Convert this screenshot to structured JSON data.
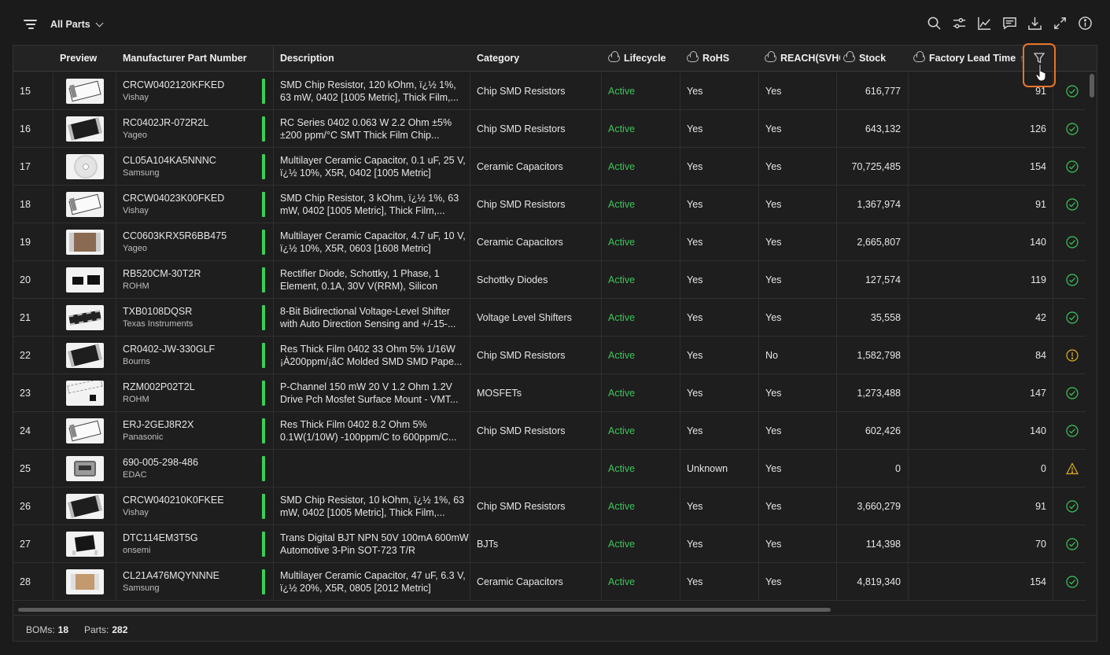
{
  "toolbar": {
    "view_label": "All Parts",
    "icons": [
      "search-icon",
      "sliders-icon",
      "chart-icon",
      "comment-icon",
      "download-icon",
      "expand-icon",
      "info-icon"
    ]
  },
  "columns": {
    "preview": "Preview",
    "mpn": "Manufacturer Part Number",
    "description": "Description",
    "category": "Category",
    "lifecycle": "Lifecycle",
    "rohs": "RoHS",
    "reach": "REACH(SVHC",
    "stock": "Stock",
    "lead_time": "Factory Lead Time",
    "sort_indicator": "↑"
  },
  "rows": [
    {
      "index": "15",
      "mpn": "CRCW0402120KFKED",
      "manufacturer": "Vishay",
      "description": "SMD Chip Resistor, 120 kOhm, ï¿½ 1%, 63 mW, 0402 [1005 Metric], Thick Film,...",
      "category": "Chip SMD Resistors",
      "lifecycle": "Active",
      "rohs": "Yes",
      "reach": "Yes",
      "stock": "616,777",
      "lead_time": "91",
      "status": "ok",
      "thumb": "resistor-white"
    },
    {
      "index": "16",
      "mpn": "RC0402JR-072R2L",
      "manufacturer": "Yageo",
      "description": "RC Series 0402 0.063 W 2.2 Ohm ±5% ±200 ppm/°C SMT Thick Film Chip...",
      "category": "Chip SMD Resistors",
      "lifecycle": "Active",
      "rohs": "Yes",
      "reach": "Yes",
      "stock": "643,132",
      "lead_time": "126",
      "status": "ok",
      "thumb": "resistor-black"
    },
    {
      "index": "17",
      "mpn": "CL05A104KA5NNNC",
      "manufacturer": "Samsung",
      "description": "Multilayer Ceramic Capacitor, 0.1 uF, 25 V, ï¿½ 10%, X5R, 0402 [1005 Metric]",
      "category": "Ceramic Capacitors",
      "lifecycle": "Active",
      "rohs": "Yes",
      "reach": "Yes",
      "stock": "70,725,485",
      "lead_time": "154",
      "status": "ok",
      "thumb": "reel"
    },
    {
      "index": "18",
      "mpn": "CRCW04023K00FKED",
      "manufacturer": "Vishay",
      "description": "SMD Chip Resistor, 3 kOhm, ï¿½ 1%, 63 mW, 0402 [1005 Metric], Thick Film,...",
      "category": "Chip SMD Resistors",
      "lifecycle": "Active",
      "rohs": "Yes",
      "reach": "Yes",
      "stock": "1,367,974",
      "lead_time": "91",
      "status": "ok",
      "thumb": "resistor-white"
    },
    {
      "index": "19",
      "mpn": "CC0603KRX5R6BB475",
      "manufacturer": "Yageo",
      "description": "Multilayer Ceramic Capacitor, 4.7 uF, 10 V, ï¿½ 10%, X5R, 0603 [1608 Metric]",
      "category": "Ceramic Capacitors",
      "lifecycle": "Active",
      "rohs": "Yes",
      "reach": "Yes",
      "stock": "2,665,807",
      "lead_time": "140",
      "status": "ok",
      "thumb": "capacitor-brown"
    },
    {
      "index": "20",
      "mpn": "RB520CM-30T2R",
      "manufacturer": "ROHM",
      "description": "Rectifier Diode, Schottky, 1 Phase, 1 Element, 0.1A, 30V V(RRM), Silicon",
      "category": "Schottky Diodes",
      "lifecycle": "Active",
      "rohs": "Yes",
      "reach": "Yes",
      "stock": "127,574",
      "lead_time": "119",
      "status": "ok",
      "thumb": "diode"
    },
    {
      "index": "21",
      "mpn": "TXB0108DQSR",
      "manufacturer": "Texas Instruments",
      "description": "8-Bit Bidirectional Voltage-Level Shifter with Auto Direction Sensing and +/-15-...",
      "category": "Voltage Level Shifters",
      "lifecycle": "Active",
      "rohs": "Yes",
      "reach": "Yes",
      "stock": "35,558",
      "lead_time": "42",
      "status": "ok",
      "thumb": "ic"
    },
    {
      "index": "22",
      "mpn": "CR0402-JW-330GLF",
      "manufacturer": "Bourns",
      "description": "Res Thick Film 0402 33 Ohm 5% 1/16W ¡À200ppm/¡ãC Molded SMD SMD Pape...",
      "category": "Chip SMD Resistors",
      "lifecycle": "Active",
      "rohs": "Yes",
      "reach": "No",
      "stock": "1,582,798",
      "lead_time": "84",
      "status": "warn-circle",
      "thumb": "resistor-black"
    },
    {
      "index": "23",
      "mpn": "RZM002P02T2L",
      "manufacturer": "ROHM",
      "description": "P-Channel 150 mW 20 V 1.2 Ohm 1.2V Drive Pch Mosfet Surface Mount - VMT...",
      "category": "MOSFETs",
      "lifecycle": "Active",
      "rohs": "Yes",
      "reach": "Yes",
      "stock": "1,273,488",
      "lead_time": "147",
      "status": "ok",
      "thumb": "tape"
    },
    {
      "index": "24",
      "mpn": "ERJ-2GEJ8R2X",
      "manufacturer": "Panasonic",
      "description": "Res Thick Film 0402 8.2 Ohm 5% 0.1W(1/10W) -100ppm/C to 600ppm/C...",
      "category": "Chip SMD Resistors",
      "lifecycle": "Active",
      "rohs": "Yes",
      "reach": "Yes",
      "stock": "602,426",
      "lead_time": "140",
      "status": "ok",
      "thumb": "resistor-white"
    },
    {
      "index": "25",
      "mpn": "690-005-298-486",
      "manufacturer": "EDAC",
      "description": "",
      "category": "",
      "lifecycle": "Active",
      "rohs": "Unknown",
      "reach": "Yes",
      "stock": "0",
      "lead_time": "0",
      "status": "warn-triangle",
      "thumb": "usb"
    },
    {
      "index": "26",
      "mpn": "CRCW040210K0FKEE",
      "manufacturer": "Vishay",
      "description": "SMD Chip Resistor, 10 kOhm, ï¿½ 1%, 63 mW, 0402 [1005 Metric], Thick Film,...",
      "category": "Chip SMD Resistors",
      "lifecycle": "Active",
      "rohs": "Yes",
      "reach": "Yes",
      "stock": "3,660,279",
      "lead_time": "91",
      "status": "ok",
      "thumb": "resistor-black"
    },
    {
      "index": "27",
      "mpn": "DTC114EM3T5G",
      "manufacturer": "onsemi",
      "description": "Trans Digital BJT NPN 50V 100mA 600mW Automotive 3-Pin SOT-723 T/R",
      "category": "BJTs",
      "lifecycle": "Active",
      "rohs": "Yes",
      "reach": "Yes",
      "stock": "114,398",
      "lead_time": "70",
      "status": "ok",
      "thumb": "transistor"
    },
    {
      "index": "28",
      "mpn": "CL21A476MQYNNNE",
      "manufacturer": "Samsung",
      "description": "Multilayer Ceramic Capacitor, 47 uF, 6.3 V, ï¿½ 20%, X5R, 0805 [2012 Metric]",
      "category": "Ceramic Capacitors",
      "lifecycle": "Active",
      "rohs": "Yes",
      "reach": "Yes",
      "stock": "4,819,340",
      "lead_time": "154",
      "status": "ok",
      "thumb": "capacitor-tan"
    }
  ],
  "footer": {
    "boms_label": "BOMs:",
    "boms_value": "18",
    "parts_label": "Parts:",
    "parts_value": "282"
  },
  "colors": {
    "active": "#3cc65a",
    "ok": "#3cc65a",
    "warn": "#e0b020",
    "highlight": "#e8732a"
  }
}
